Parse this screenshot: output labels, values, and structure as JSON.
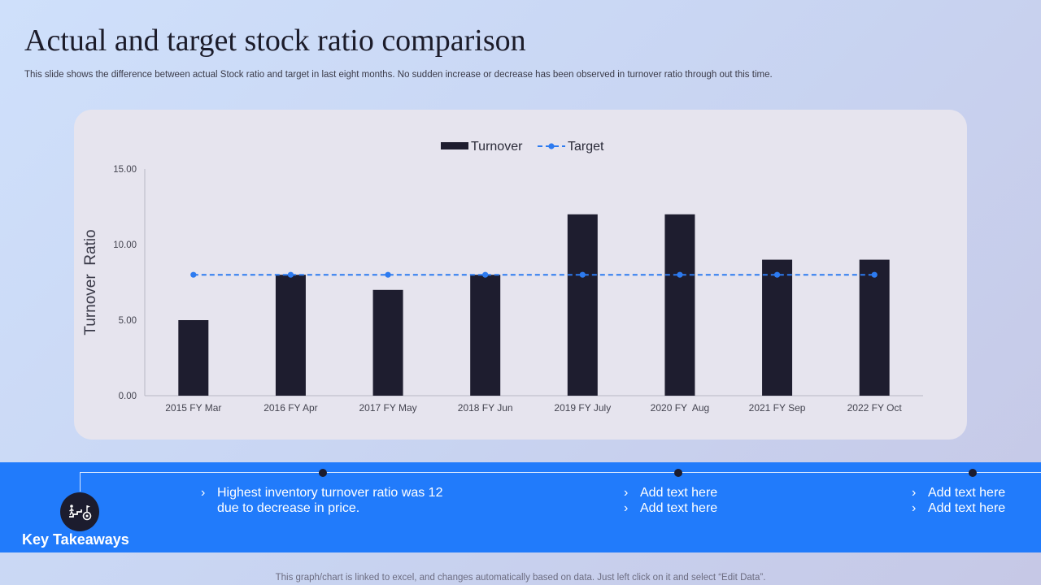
{
  "page": {
    "title": "Actual and target stock ratio comparison",
    "subtitle": "This slide shows the difference between actual Stock ratio and target in last eight months. No sudden increase or decrease has been observed in turnover ratio through out this time.",
    "footnote": "This graph/chart is linked to excel, and changes automatically based on data. Just left click on it and select “Edit Data”."
  },
  "colors": {
    "bar": "#1e1d2f",
    "target": "#2d7bf0",
    "band": "#217bfb"
  },
  "chart_data": {
    "type": "bar",
    "categories": [
      "2015 FY Mar",
      "2016 FY Apr",
      "2017 FY May",
      "2018 FY Jun",
      "2019 FY July",
      "2020 FY  Aug",
      "2021 FY Sep",
      "2022 FY Oct"
    ],
    "series": [
      {
        "name": "Turnover",
        "kind": "bar",
        "values": [
          5,
          8,
          7,
          8,
          12,
          12,
          9,
          9
        ]
      },
      {
        "name": "Target",
        "kind": "line-dashed",
        "values": [
          8,
          8,
          8,
          8,
          8,
          8,
          8,
          8
        ]
      }
    ],
    "ylabel": "Turnover  Ratio",
    "xlabel": "",
    "ylim": [
      0,
      15
    ],
    "yticks": [
      0,
      5,
      10,
      15
    ],
    "ytick_labels": [
      "0.00",
      "5.00",
      "10.00",
      "15.00"
    ],
    "legend": [
      "Turnover",
      "Target"
    ],
    "legend_position": "top-center",
    "grid": false
  },
  "takeaways": {
    "label": "Key Takeaways",
    "icon": "stairs-goal-icon",
    "columns": [
      {
        "lines": [
          "Highest inventory  turnover  ratio was 12 due to decrease in price."
        ]
      },
      {
        "lines": [
          "Add text here",
          "Add text here"
        ]
      },
      {
        "lines": [
          "Add text here",
          "Add text here"
        ]
      }
    ]
  }
}
